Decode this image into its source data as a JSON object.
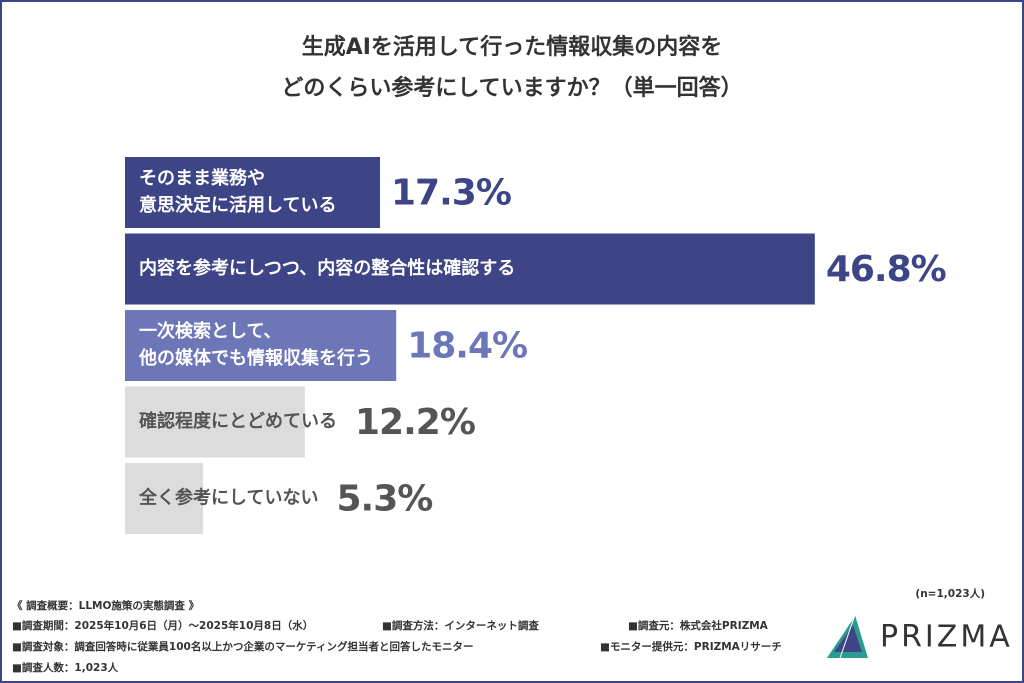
{
  "chart_data": {
    "type": "hbar",
    "title": [
      "生成AIを活用して行った情報収集の内容を",
      "どのくらい参考にしていますか？（単一回答）"
    ],
    "categories": [
      [
        "そのまま業務や",
        "意思決定に活用している"
      ],
      [
        "内容を参考にしつつ、内容の整合性は確認する"
      ],
      [
        "一次検索として、",
        "他の媒体でも情報収集を行う"
      ],
      [
        "確認程度にとどめている"
      ],
      [
        "全く参考にしていない"
      ]
    ],
    "values": [
      17.3,
      46.8,
      18.4,
      12.2,
      5.3
    ],
    "value_labels": [
      "17.3%",
      "46.8%",
      "18.4%",
      "12.2%",
      "5.3%"
    ],
    "colors": [
      "#3d4587",
      "#3d4587",
      "#6d77b8",
      "#dcdcdc",
      "#dcdcdc"
    ],
    "label_colors": [
      "#ffffff",
      "#ffffff",
      "#ffffff",
      "#555555",
      "#555555"
    ],
    "value_label_colors": [
      "#3d4587",
      "#3d4587",
      "#6d77b8",
      "#555555",
      "#555555"
    ],
    "xlim": [
      0,
      50
    ]
  },
  "footer": {
    "sample": "(n=1,023人)",
    "survey_title": "《 調査概要：LLMO施策の実態調査 》",
    "items": [
      "■調査期間：2025年10月6日（月）～2025年10月8日（水）",
      "■調査方法：インターネット調査",
      "■調査元：株式会社PRIZMA",
      "■調査対象：調査回答時に従業員100名以上かつ企業のマーケティング担当者と回答したモニター",
      "■モニター提供元：PRIZMAリサーチ",
      "■調査人数：1,023人"
    ],
    "logo": "PRIZMA"
  }
}
